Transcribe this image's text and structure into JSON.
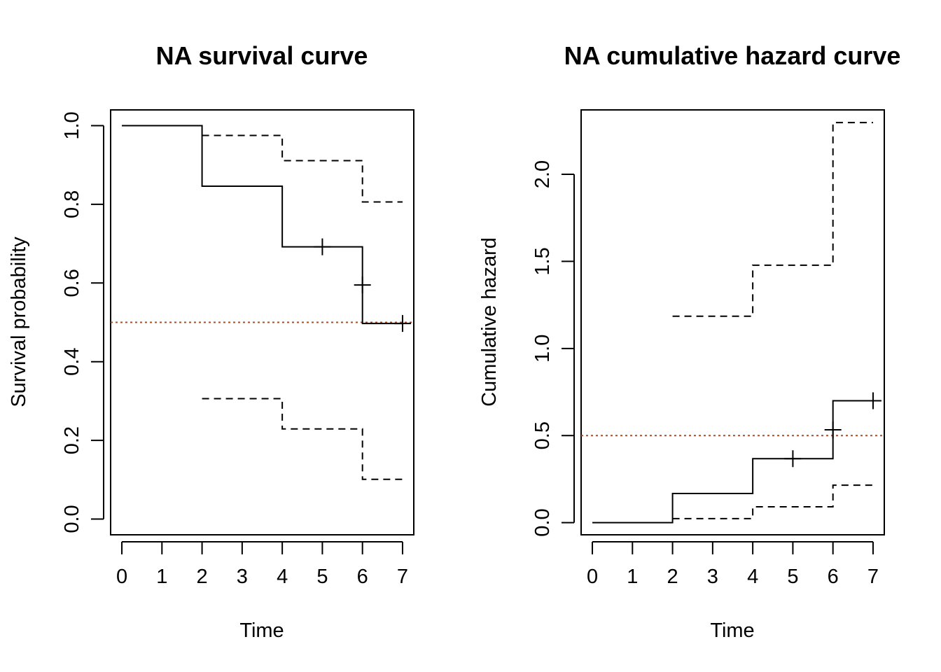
{
  "colors": {
    "line": "#000000",
    "reference_line": "#a0522d",
    "background": "#ffffff"
  },
  "chart_data": [
    {
      "type": "line",
      "title": "NA survival curve",
      "xlabel": "Time",
      "ylabel": "Survival probability",
      "xlim": [
        -0.28,
        7.28
      ],
      "ylim": [
        -0.04,
        1.04
      ],
      "xticks": [
        "0",
        "1",
        "2",
        "3",
        "4",
        "5",
        "6",
        "7"
      ],
      "yticks": [
        "0.0",
        "0.2",
        "0.4",
        "0.6",
        "0.8",
        "1.0"
      ],
      "reference_line": {
        "orientation": "horizontal",
        "value": 0.5,
        "style": "dotted"
      },
      "grid": false,
      "legend": "none",
      "series": [
        {
          "role": "estimate",
          "style": "solid",
          "x": [
            0,
            2,
            4,
            6,
            7
          ],
          "y": [
            1.0,
            0.846,
            0.692,
            0.497,
            0.497
          ]
        },
        {
          "role": "upper",
          "style": "dashed",
          "x": [
            2,
            4,
            6,
            7
          ],
          "y": [
            0.975,
            0.911,
            0.806,
            0.806
          ]
        },
        {
          "role": "lower",
          "style": "dashed",
          "x": [
            2,
            4,
            6,
            7
          ],
          "y": [
            0.306,
            0.229,
            0.101,
            0.101
          ]
        }
      ],
      "censor_marks": [
        {
          "x": 5,
          "y": 0.692
        },
        {
          "x": 6,
          "y": 0.595
        },
        {
          "x": 7,
          "y": 0.497
        }
      ]
    },
    {
      "type": "line",
      "title": "NA cumulative hazard curve",
      "xlabel": "Time",
      "ylabel": "Cumulative hazard",
      "xlim": [
        -0.28,
        7.28
      ],
      "ylim": [
        -0.07,
        2.37
      ],
      "xticks": [
        "0",
        "1",
        "2",
        "3",
        "4",
        "5",
        "6",
        "7"
      ],
      "yticks": [
        "0.0",
        "0.5",
        "1.0",
        "1.5",
        "2.0"
      ],
      "reference_line": {
        "orientation": "horizontal",
        "value": 0.5,
        "style": "dotted"
      },
      "grid": false,
      "legend": "none",
      "series": [
        {
          "role": "estimate",
          "style": "solid",
          "x": [
            0,
            2,
            4,
            6,
            7
          ],
          "y": [
            0.0,
            0.167,
            0.367,
            0.7,
            0.7
          ]
        },
        {
          "role": "upper",
          "style": "dashed",
          "x": [
            2,
            4,
            6,
            7
          ],
          "y": [
            1.185,
            1.478,
            2.297,
            2.297
          ]
        },
        {
          "role": "lower",
          "style": "dashed",
          "x": [
            2,
            4,
            6,
            7
          ],
          "y": [
            0.023,
            0.091,
            0.215,
            0.215
          ]
        }
      ],
      "censor_marks": [
        {
          "x": 5,
          "y": 0.367
        },
        {
          "x": 6,
          "y": 0.533
        },
        {
          "x": 7,
          "y": 0.7
        }
      ]
    }
  ]
}
